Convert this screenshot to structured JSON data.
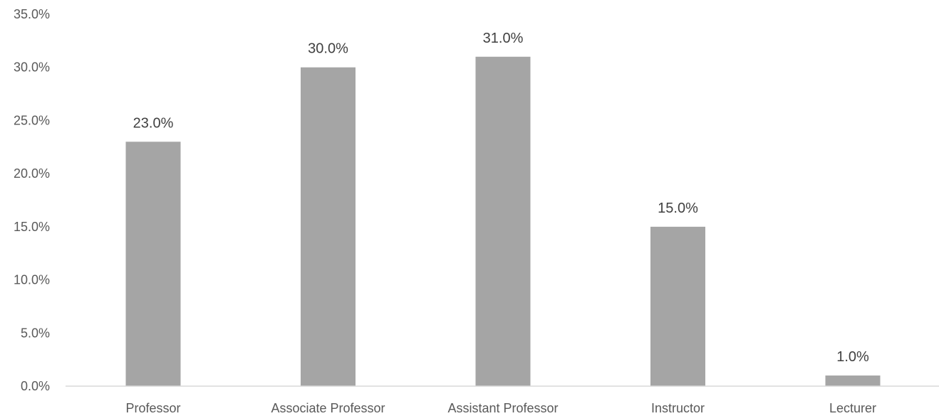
{
  "chart_data": {
    "type": "bar",
    "title": "",
    "xlabel": "",
    "ylabel": "",
    "categories": [
      "Professor",
      "Associate Professor",
      "Assistant Professor",
      "Instructor",
      "Lecturer"
    ],
    "values": [
      23.0,
      30.0,
      31.0,
      15.0,
      1.0
    ],
    "value_labels": [
      "23.0%",
      "30.0%",
      "31.0%",
      "15.0%",
      "1.0%"
    ],
    "ylim": [
      0,
      35
    ],
    "yticks": [
      0,
      5,
      10,
      15,
      20,
      25,
      30,
      35
    ],
    "ytick_labels": [
      "0.0%",
      "5.0%",
      "10.0%",
      "15.0%",
      "20.0%",
      "25.0%",
      "30.0%",
      "35.0%"
    ],
    "grid": false,
    "legend": "none"
  },
  "colors": {
    "bar": "#a5a5a5",
    "axis": "#d9d9d9"
  }
}
